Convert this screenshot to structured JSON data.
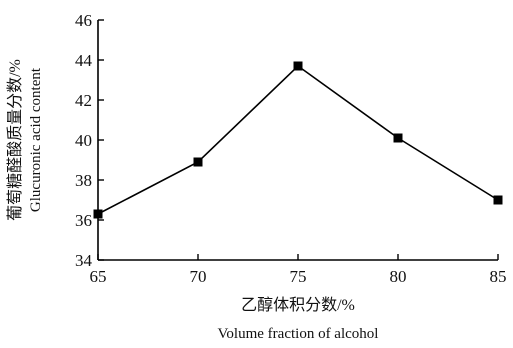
{
  "chart_data": {
    "type": "line",
    "x": [
      65,
      70,
      75,
      80,
      85
    ],
    "series": [
      {
        "values": [
          36.3,
          38.9,
          43.7,
          40.1,
          37.0
        ]
      }
    ],
    "xlim": [
      65,
      85
    ],
    "ylim": [
      34,
      46
    ],
    "x_ticks": [
      "65",
      "70",
      "75",
      "80",
      "85"
    ],
    "y_ticks": [
      "34",
      "36",
      "38",
      "40",
      "42",
      "44",
      "46"
    ],
    "xlabel_cn": "乙醇体积分数/%",
    "xlabel_en": "Volume fraction of alcohol",
    "ylabel_cn": "葡萄糖醛酸质量分数/%",
    "ylabel_en": "Glucuronic acid content",
    "grid": false,
    "line_color": "#000000",
    "marker": "square"
  }
}
